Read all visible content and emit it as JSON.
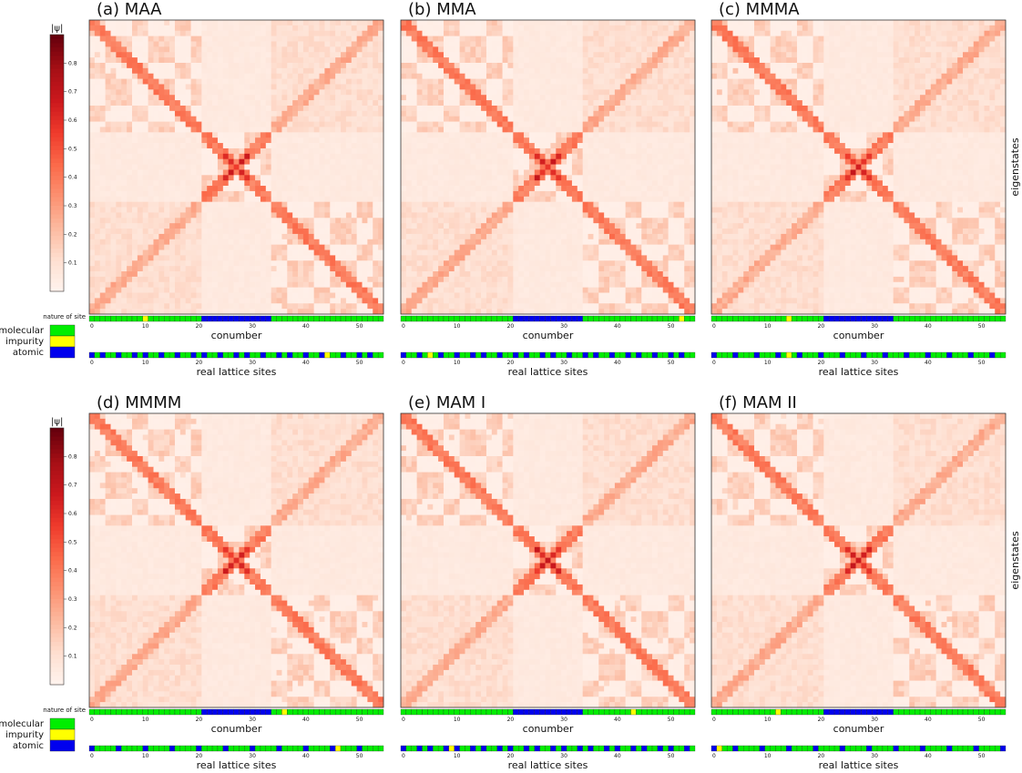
{
  "figure": {
    "colorbar_label": "|ψ|",
    "colorbar_ticks": [
      "0.1",
      "0.2",
      "0.3",
      "0.4",
      "0.5",
      "0.6",
      "0.7",
      "0.8"
    ],
    "nature_of_site_label": "nature of site",
    "legend": [
      {
        "label": "molecular",
        "color": "#00ee00"
      },
      {
        "label": "impurity",
        "color": "#ffff00"
      },
      {
        "label": "atomic",
        "color": "#0000ee"
      }
    ],
    "eigenstates_label": "eigenstates",
    "colormap": "Reds"
  },
  "chart_data": [
    {
      "type": "heatmap",
      "title": "(a) MAA",
      "xlabel": "conumber",
      "xlabel2": "real lattice sites",
      "ylabel": "eigenstates",
      "x_ticks": [
        "0",
        "10",
        "20",
        "30",
        "40",
        "50"
      ],
      "x_range": [
        0,
        55
      ],
      "value_range": [
        0,
        0.9
      ],
      "nature_by_conumber": "MMMMMMMMMMIMMMMMMMMMMAAAAAAAAAAAAAMMMMMMMMMMMMMMMMMMMMM",
      "nature_by_real_site": "AMAMMAMMAMAMMAMMAMMAMAMMAMMAMAMMAMMAMAMMAMMAIMMAMMAMAMM"
    },
    {
      "type": "heatmap",
      "title": "(b) MMA",
      "xlabel": "conumber",
      "xlabel2": "real lattice sites",
      "ylabel": "eigenstates",
      "x_ticks": [
        "0",
        "10",
        "20",
        "30",
        "40",
        "50"
      ],
      "x_range": [
        0,
        55
      ],
      "value_range": [
        0,
        0.9
      ],
      "nature_by_conumber": "MMMMMMMMMMMMMMMMMMMMMAAAAAAAAAAAAAMMMMMMMMMMMMMMMMMMIMM",
      "nature_by_real_site": "AMMAMIMAMMAMMAMAMMAMMAMAMMAMAMMAMMAMAMMAMMAMAMMAMMAMAMM"
    },
    {
      "type": "heatmap",
      "title": "(c) MMMA",
      "xlabel": "conumber",
      "xlabel2": "real lattice sites",
      "ylabel": "eigenstates",
      "x_ticks": [
        "0",
        "10",
        "20",
        "30",
        "40",
        "50"
      ],
      "x_range": [
        0,
        55
      ],
      "value_range": [
        0,
        0.9
      ],
      "nature_by_conumber": "MMMMMMMMMMMMMMIMMMMMMAAAAAAAAAAAAAMMMMMMMMMMMMMMMMMMMMM",
      "nature_by_real_site": "AMMMAMMMAMMMAMIMAMMMAMMMAMMMAMMMAMMMAMMMAMMMAMMMAMMMAMM"
    },
    {
      "type": "heatmap",
      "title": "(d) MMMM",
      "xlabel": "conumber",
      "xlabel2": "real lattice sites",
      "ylabel": "eigenstates",
      "x_ticks": [
        "0",
        "10",
        "20",
        "30",
        "40",
        "50"
      ],
      "x_range": [
        0,
        55
      ],
      "value_range": [
        0,
        0.9
      ],
      "nature_by_conumber": "MMMMMMMMMMMMMMMMMMMMMAAAAAAAAAAAAAMMIMMMMMMMMMMMMMMMMMM",
      "nature_by_real_site": "AMMMMAMMMMAMMMMAMMMMAMMMMAMMMMAMMMMAMMMMAMMMMAIMMMAMMMM"
    },
    {
      "type": "heatmap",
      "title": "(e) MAM I",
      "xlabel": "conumber",
      "xlabel2": "real lattice sites",
      "ylabel": "eigenstates",
      "x_ticks": [
        "0",
        "10",
        "20",
        "30",
        "40",
        "50"
      ],
      "x_range": [
        0,
        55
      ],
      "value_range": [
        0,
        0.9
      ],
      "nature_by_conumber": "MMMMMMMMMMMMMMMMMMMMMAAAAAAAAAAAAAMMMMMMMMMIMMMMMMMMMMM",
      "nature_by_real_site": "AMMAMAMMAIAMMAMAMMAMAMMAMAMMAMAMMAMAMMAMAMMAMAMMAMAMMAM"
    },
    {
      "type": "heatmap",
      "title": "(f) MAM II",
      "xlabel": "conumber",
      "xlabel2": "real lattice sites",
      "ylabel": "eigenstates",
      "x_ticks": [
        "0",
        "10",
        "20",
        "30",
        "40",
        "50"
      ],
      "x_range": [
        0,
        55
      ],
      "value_range": [
        0,
        0.9
      ],
      "nature_by_conumber": "MMMMMMMMMMMMIMMMMMMMMAAAAAAAAAAAAAMMMMMMMMMMMMMMMMMMMMM",
      "nature_by_real_site": "AIMMAMMMMAMMMMAMMMMAMMMMAMMMMAMMMMAMMMMAMMMMAMMMMAMMMMA"
    }
  ]
}
